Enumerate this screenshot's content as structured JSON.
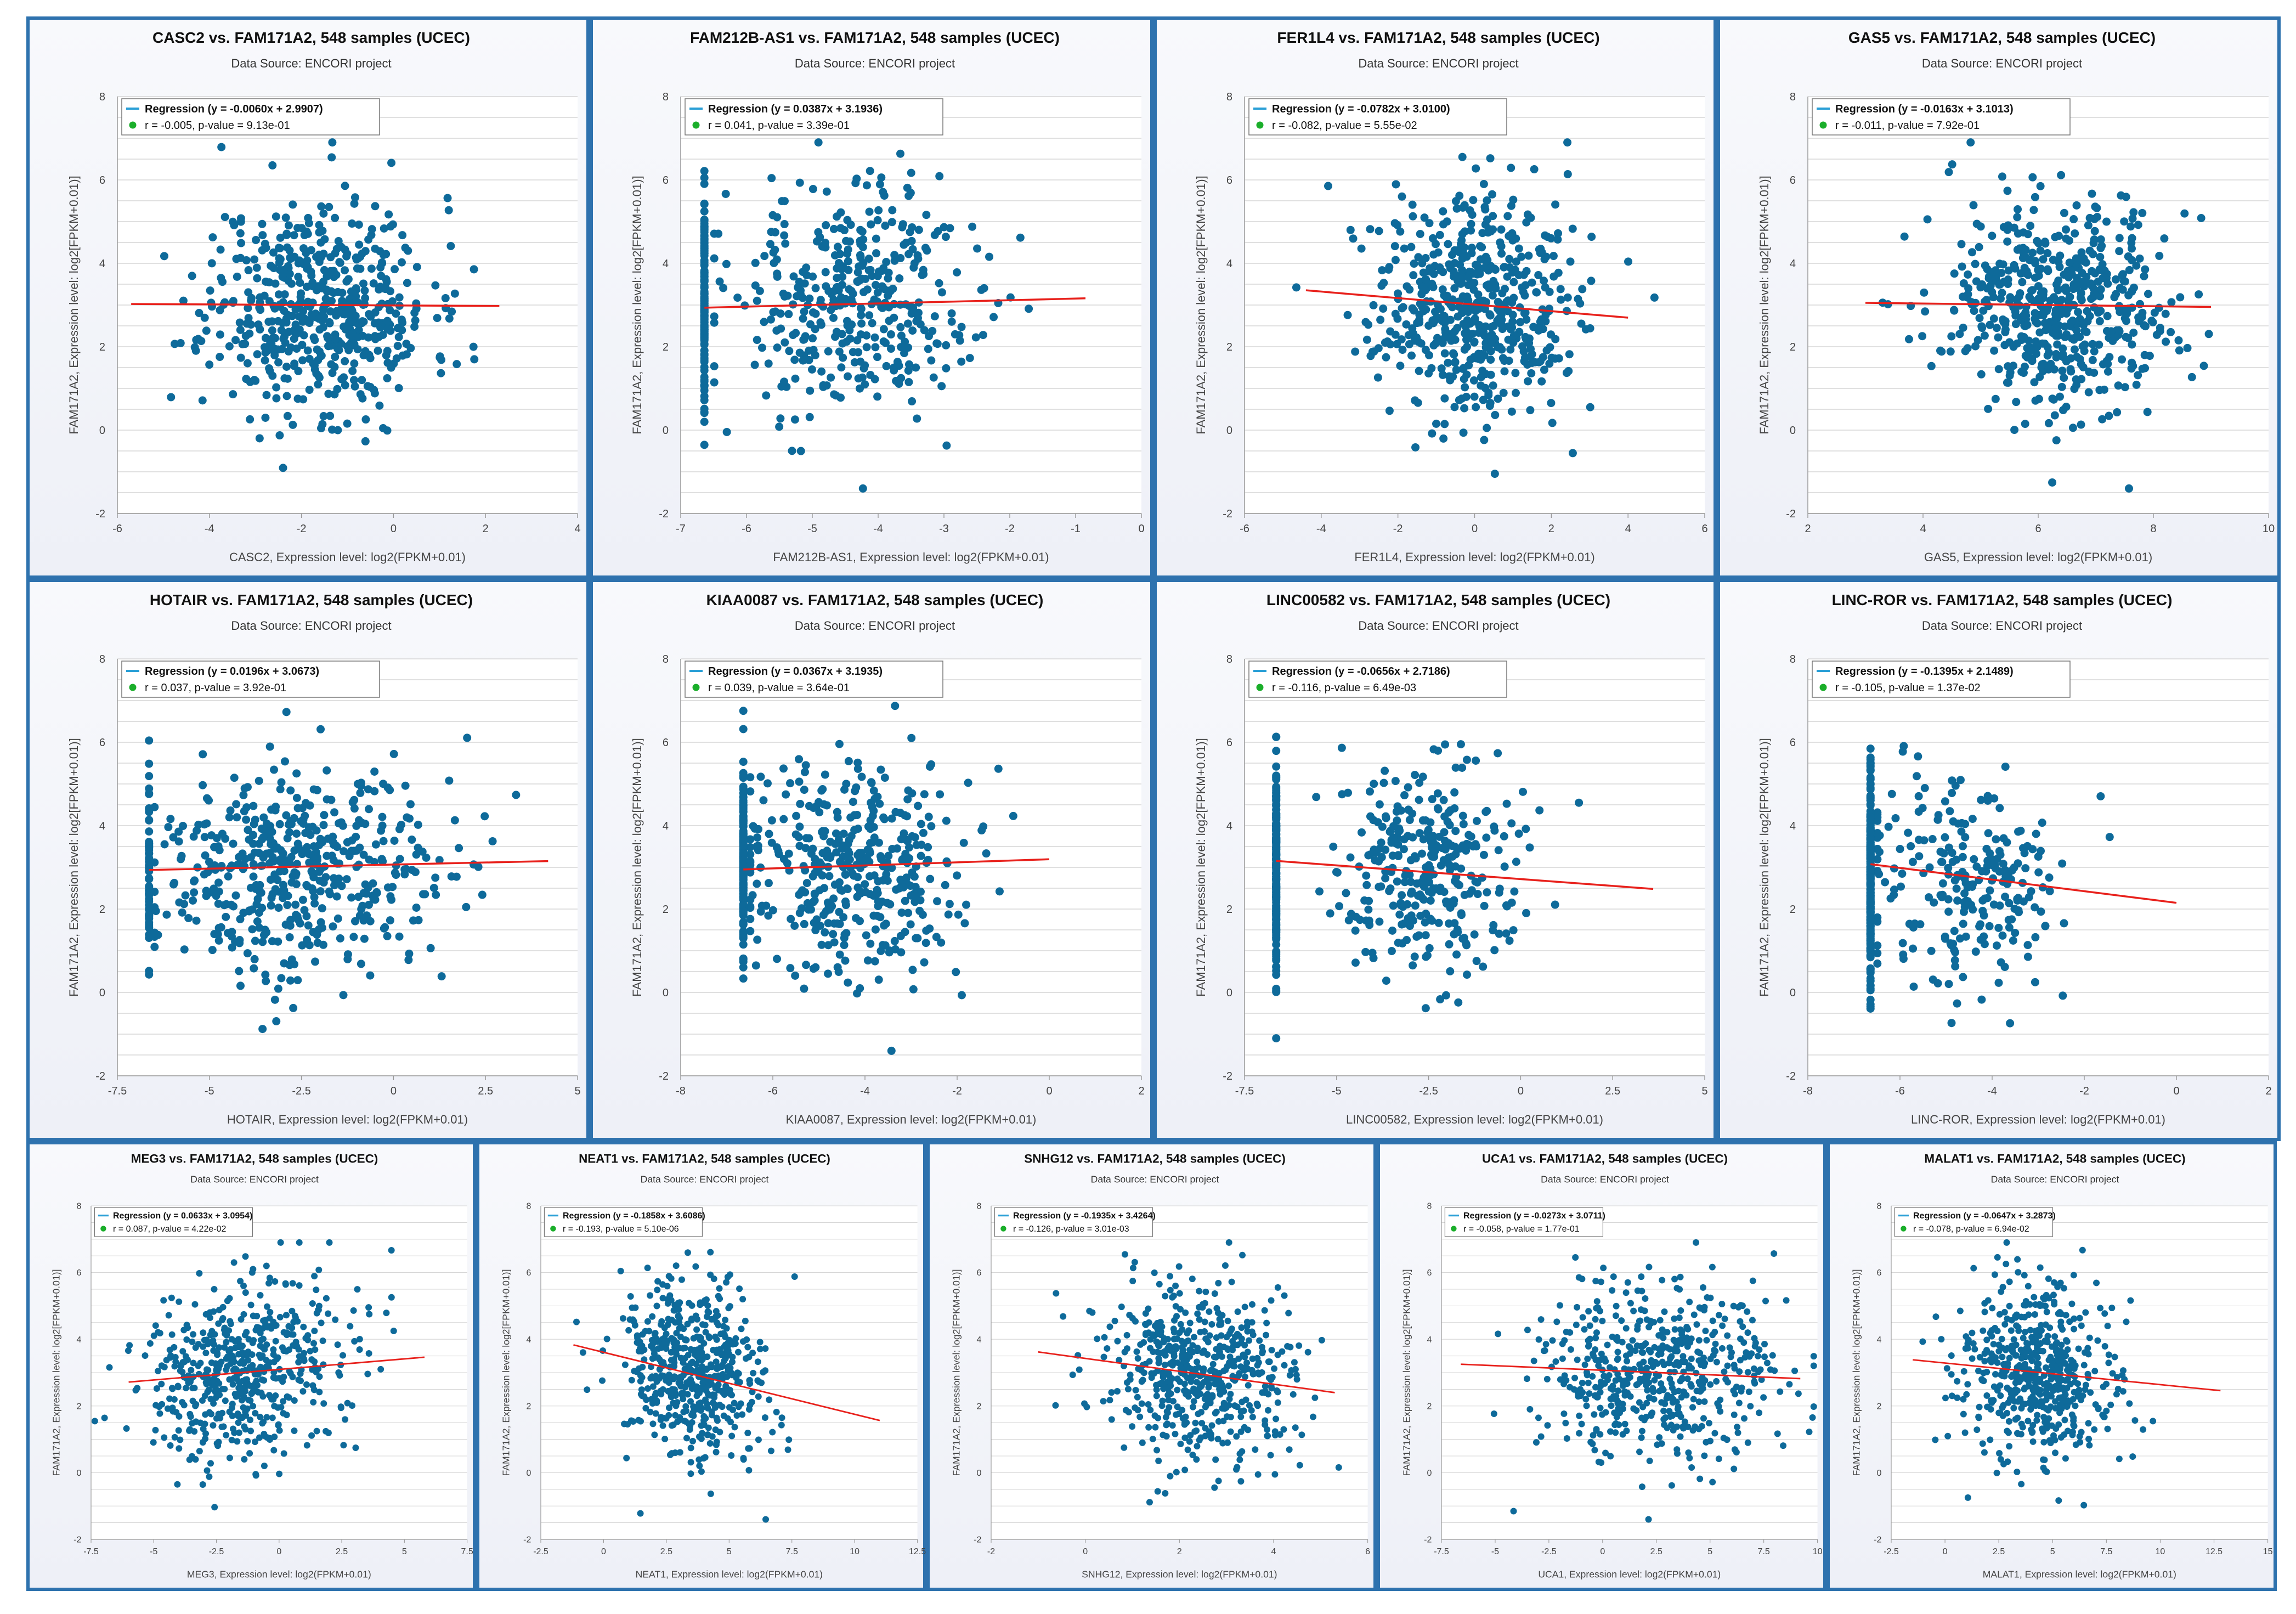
{
  "colors": {
    "border": "#2e72ae",
    "point": "#0e6a9a",
    "regression": "#e8211c",
    "legend_line": "#2a9fd6",
    "legend_dot": "#1aae2a"
  },
  "legend": {
    "regression_label": "Regression"
  },
  "chart_data": [
    {
      "type": "scatter",
      "title": "CASC2 vs. FAM171A2, 548 samples (UCEC)",
      "subtitle": "Data Source: ENCORI project",
      "xlabel": "CASC2, Expression level: log2(FPKM+0.01)",
      "ylabel": "FAM171A2, Expression level: log2[FPKM+0.01)]",
      "xlim": [
        -6,
        4
      ],
      "xticks": [
        -6,
        -4,
        -2,
        0,
        2,
        4
      ],
      "ylim": [
        -2,
        8
      ],
      "yticks": [
        -2,
        0,
        2,
        4,
        6,
        8
      ],
      "regression_text": "(y = -0.0060x + 2.9907)",
      "stats_text": "r = -0.005, p-value = 9.13e-01",
      "slope": -0.006,
      "intercept": 2.9907,
      "line_x": [
        -5.7,
        2.3
      ],
      "x_mean": -1.6,
      "x_sd": 1.2,
      "y_mean": 3.0,
      "y_sd": 1.3,
      "n": 548,
      "seed": 11
    },
    {
      "type": "scatter",
      "title": "FAM212B-AS1 vs. FAM171A2, 548 samples (UCEC)",
      "subtitle": "Data Source: ENCORI project",
      "xlabel": "FAM212B-AS1, Expression level: log2(FPKM+0.01)",
      "ylabel": "FAM171A2, Expression level: log2[FPKM+0.01)]",
      "xlim": [
        -7,
        0
      ],
      "xticks": [
        -7,
        -6,
        -5,
        -4,
        -3,
        -2,
        -1,
        0
      ],
      "ylim": [
        -2,
        8
      ],
      "yticks": [
        -2,
        0,
        2,
        4,
        6,
        8
      ],
      "regression_text": "(y = 0.0387x + 3.1936)",
      "stats_text": "r = 0.041, p-value = 3.39e-01",
      "slope": 0.0387,
      "intercept": 3.1936,
      "line_x": [
        -6.64,
        -0.85
      ],
      "x_mean": -4.4,
      "x_sd": 0.9,
      "y_mean": 3.1,
      "y_sd": 1.3,
      "n": 548,
      "seed": 22,
      "floor_x": -6.64,
      "floor_frac": 0.28
    },
    {
      "type": "scatter",
      "title": "FER1L4 vs. FAM171A2, 548 samples (UCEC)",
      "subtitle": "Data Source: ENCORI project",
      "xlabel": "FER1L4, Expression level: log2(FPKM+0.01)",
      "ylabel": "FAM171A2, Expression level: log2[FPKM+0.01)]",
      "xlim": [
        -6,
        6
      ],
      "xticks": [
        -6,
        -4,
        -2,
        0,
        2,
        4,
        6
      ],
      "ylim": [
        -2,
        8
      ],
      "yticks": [
        -2,
        0,
        2,
        4,
        6,
        8
      ],
      "regression_text": "(y = -0.0782x + 3.0100)",
      "stats_text": "r = -0.082, p-value = 5.55e-02",
      "slope": -0.0782,
      "intercept": 3.01,
      "line_x": [
        -4.4,
        4.0
      ],
      "x_mean": 0.0,
      "x_sd": 1.3,
      "y_mean": 3.0,
      "y_sd": 1.3,
      "n": 548,
      "seed": 33
    },
    {
      "type": "scatter",
      "title": "GAS5 vs. FAM171A2, 548 samples (UCEC)",
      "subtitle": "Data Source: ENCORI project",
      "xlabel": "GAS5, Expression level: log2(FPKM+0.01)",
      "ylabel": "FAM171A2, Expression level: log2[FPKM+0.01)]",
      "xlim": [
        2,
        10
      ],
      "xticks": [
        2,
        4,
        6,
        8,
        10
      ],
      "ylim": [
        -2,
        8
      ],
      "yticks": [
        -2,
        0,
        2,
        4,
        6,
        8
      ],
      "regression_text": "(y = -0.0163x + 3.1013)",
      "stats_text": "r = -0.011, p-value = 7.92e-01",
      "slope": -0.0163,
      "intercept": 3.1013,
      "line_x": [
        3.0,
        9.0
      ],
      "x_mean": 6.3,
      "x_sd": 1.0,
      "y_mean": 3.0,
      "y_sd": 1.3,
      "n": 548,
      "seed": 44
    },
    {
      "type": "scatter",
      "title": "HOTAIR vs. FAM171A2, 548 samples (UCEC)",
      "subtitle": "Data Source: ENCORI project",
      "xlabel": "HOTAIR, Expression level: log2(FPKM+0.01)",
      "ylabel": "FAM171A2, Expression level: log2[FPKM+0.01)]",
      "xlim": [
        -7.5,
        5
      ],
      "xticks": [
        -7.5,
        -5,
        -2.5,
        0,
        2.5,
        5
      ],
      "ylim": [
        -2,
        8
      ],
      "yticks": [
        -2,
        0,
        2,
        4,
        6,
        8
      ],
      "regression_text": "(y = 0.0196x + 3.0673)",
      "stats_text": "r = 0.037, p-value = 3.92e-01",
      "slope": 0.0196,
      "intercept": 3.0673,
      "line_x": [
        -6.64,
        4.2
      ],
      "x_mean": -2.5,
      "x_sd": 2.0,
      "y_mean": 3.0,
      "y_sd": 1.3,
      "n": 548,
      "seed": 55,
      "floor_x": -6.64,
      "floor_frac": 0.1
    },
    {
      "type": "scatter",
      "title": "KIAA0087 vs. FAM171A2, 548 samples (UCEC)",
      "subtitle": "Data Source: ENCORI project",
      "xlabel": "KIAA0087, Expression level: log2(FPKM+0.01)",
      "ylabel": "FAM171A2, Expression level: log2[FPKM+0.01)]",
      "xlim": [
        -8,
        2
      ],
      "xticks": [
        -8,
        -6,
        -4,
        -2,
        0,
        2
      ],
      "ylim": [
        -2,
        8
      ],
      "yticks": [
        -2,
        0,
        2,
        4,
        6,
        8
      ],
      "regression_text": "(y = 0.0367x + 3.1935)",
      "stats_text": "r = 0.039, p-value = 3.64e-01",
      "slope": 0.0367,
      "intercept": 3.1935,
      "line_x": [
        -6.64,
        0.0
      ],
      "x_mean": -4.3,
      "x_sd": 1.2,
      "y_mean": 3.0,
      "y_sd": 1.3,
      "n": 548,
      "seed": 66,
      "floor_x": -6.64,
      "floor_frac": 0.25
    },
    {
      "type": "scatter",
      "title": "LINC00582 vs. FAM171A2, 548 samples (UCEC)",
      "subtitle": "Data Source: ENCORI project",
      "xlabel": "LINC00582, Expression level: log2(FPKM+0.01)",
      "ylabel": "FAM171A2, Expression level: log2[FPKM+0.01)]",
      "xlim": [
        -7.5,
        5
      ],
      "xticks": [
        -7.5,
        -5,
        -2.5,
        0,
        2.5,
        5
      ],
      "ylim": [
        -2,
        8
      ],
      "yticks": [
        -2,
        0,
        2,
        4,
        6,
        8
      ],
      "regression_text": "(y = -0.0656x + 2.7186)",
      "stats_text": "r = -0.116, p-value = 6.49e-03",
      "slope": -0.0656,
      "intercept": 2.7186,
      "line_x": [
        -6.64,
        3.6
      ],
      "x_mean": -2.5,
      "x_sd": 1.3,
      "y_mean": 2.9,
      "y_sd": 1.3,
      "n": 548,
      "seed": 77,
      "floor_x": -6.64,
      "floor_frac": 0.45
    },
    {
      "type": "scatter",
      "title": "LINC-ROR vs. FAM171A2, 548 samples (UCEC)",
      "subtitle": "Data Source: ENCORI project",
      "xlabel": "LINC-ROR, Expression level: log2(FPKM+0.01)",
      "ylabel": "FAM171A2, Expression level: log2[FPKM+0.01)]",
      "xlim": [
        -8,
        2
      ],
      "xticks": [
        -8,
        -6,
        -4,
        -2,
        0,
        2
      ],
      "ylim": [
        -2,
        8
      ],
      "yticks": [
        -2,
        0,
        2,
        4,
        6,
        8
      ],
      "regression_text": "(y = -0.1395x + 2.1489)",
      "stats_text": "r = -0.105, p-value = 1.37e-02",
      "slope": -0.1395,
      "intercept": 2.1489,
      "line_x": [
        -6.64,
        0.0
      ],
      "x_mean": -4.6,
      "x_sd": 1.1,
      "y_mean": 2.8,
      "y_sd": 1.3,
      "n": 548,
      "seed": 88,
      "floor_x": -6.64,
      "floor_frac": 0.55
    },
    {
      "type": "scatter",
      "title": "MEG3 vs. FAM171A2, 548 samples (UCEC)",
      "subtitle": "Data Source: ENCORI project",
      "xlabel": "MEG3, Expression level: log2(FPKM+0.01)",
      "ylabel": "FAM171A2, Expression level: log2[FPKM+0.01)]",
      "xlim": [
        -7.5,
        7.5
      ],
      "xticks": [
        -7.5,
        -5,
        -2.5,
        0,
        2.5,
        5,
        7.5
      ],
      "ylim": [
        -2,
        8
      ],
      "yticks": [
        -2,
        0,
        2,
        4,
        6,
        8
      ],
      "regression_text": "(y = 0.0633x + 3.0954)",
      "stats_text": "r = 0.087, p-value = 4.22e-02",
      "slope": 0.0633,
      "intercept": 3.0954,
      "line_x": [
        -6.0,
        5.8
      ],
      "x_mean": -1.3,
      "x_sd": 2.0,
      "y_mean": 3.0,
      "y_sd": 1.3,
      "n": 548,
      "seed": 99
    },
    {
      "type": "scatter",
      "title": "NEAT1 vs. FAM171A2, 548 samples (UCEC)",
      "subtitle": "Data Source: ENCORI project",
      "xlabel": "NEAT1, Expression level: log2(FPKM+0.01)",
      "ylabel": "FAM171A2, Expression level: log2[FPKM+0.01)]",
      "xlim": [
        -2.5,
        12.5
      ],
      "xticks": [
        -2.5,
        0,
        2.5,
        5,
        7.5,
        10,
        12.5
      ],
      "ylim": [
        -2,
        8
      ],
      "yticks": [
        -2,
        0,
        2,
        4,
        6,
        8
      ],
      "regression_text": "(y = -0.1858x + 3.6086)",
      "stats_text": "r = -0.193, p-value = 5.10e-06",
      "slope": -0.1858,
      "intercept": 3.6086,
      "line_x": [
        -1.2,
        11.0
      ],
      "x_mean": 3.6,
      "x_sd": 1.5,
      "y_mean": 3.0,
      "y_sd": 1.3,
      "n": 548,
      "seed": 111
    },
    {
      "type": "scatter",
      "title": "SNHG12 vs. FAM171A2, 548 samples (UCEC)",
      "subtitle": "Data Source: ENCORI project",
      "xlabel": "SNHG12, Expression level: log2(FPKM+0.01)",
      "ylabel": "FAM171A2, Expression level: log2[FPKM+0.01)]",
      "xlim": [
        -2,
        6
      ],
      "xticks": [
        -2,
        0,
        2,
        4,
        6
      ],
      "ylim": [
        -2,
        8
      ],
      "yticks": [
        -2,
        0,
        2,
        4,
        6,
        8
      ],
      "regression_text": "(y = -0.1935x + 3.4264)",
      "stats_text": "r = -0.126, p-value = 3.01e-03",
      "slope": -0.1935,
      "intercept": 3.4264,
      "line_x": [
        -1.0,
        5.3
      ],
      "x_mean": 2.4,
      "x_sd": 1.0,
      "y_mean": 3.0,
      "y_sd": 1.3,
      "n": 548,
      "seed": 122
    },
    {
      "type": "scatter",
      "title": "UCA1 vs. FAM171A2, 548 samples (UCEC)",
      "subtitle": "Data Source: ENCORI project",
      "xlabel": "UCA1, Expression level: log2(FPKM+0.01)",
      "ylabel": "FAM171A2, Expression level: log2[FPKM+0.01)]",
      "xlim": [
        -7.5,
        10
      ],
      "xticks": [
        -7.5,
        -5,
        -2.5,
        0,
        2.5,
        5,
        7.5,
        10
      ],
      "ylim": [
        -2,
        8
      ],
      "yticks": [
        -2,
        0,
        2,
        4,
        6,
        8
      ],
      "regression_text": "(y = -0.0273x + 3.0711)",
      "stats_text": "r = -0.058, p-value = 1.77e-01",
      "slope": -0.0273,
      "intercept": 3.0711,
      "line_x": [
        -6.6,
        9.2
      ],
      "x_mean": 2.8,
      "x_sd": 2.8,
      "y_mean": 3.0,
      "y_sd": 1.3,
      "n": 548,
      "seed": 133
    },
    {
      "type": "scatter",
      "title": "MALAT1 vs. FAM171A2, 548 samples (UCEC)",
      "subtitle": "Data Source: ENCORI project",
      "xlabel": "MALAT1, Expression level: log2(FPKM+0.01)",
      "ylabel": "FAM171A2, Expression level: log2[FPKM+0.01)]",
      "xlim": [
        -2.5,
        15
      ],
      "xticks": [
        -2.5,
        0,
        2.5,
        5,
        7.5,
        10,
        12.5,
        15
      ],
      "ylim": [
        -2,
        8
      ],
      "yticks": [
        -2,
        0,
        2,
        4,
        6,
        8
      ],
      "regression_text": "(y = -0.0647x + 3.2873)",
      "stats_text": "r = -0.078, p-value = 6.94e-02",
      "slope": -0.0647,
      "intercept": 3.2873,
      "line_x": [
        -1.5,
        12.8
      ],
      "x_mean": 4.2,
      "x_sd": 1.7,
      "y_mean": 3.0,
      "y_sd": 1.3,
      "n": 548,
      "seed": 144
    }
  ]
}
